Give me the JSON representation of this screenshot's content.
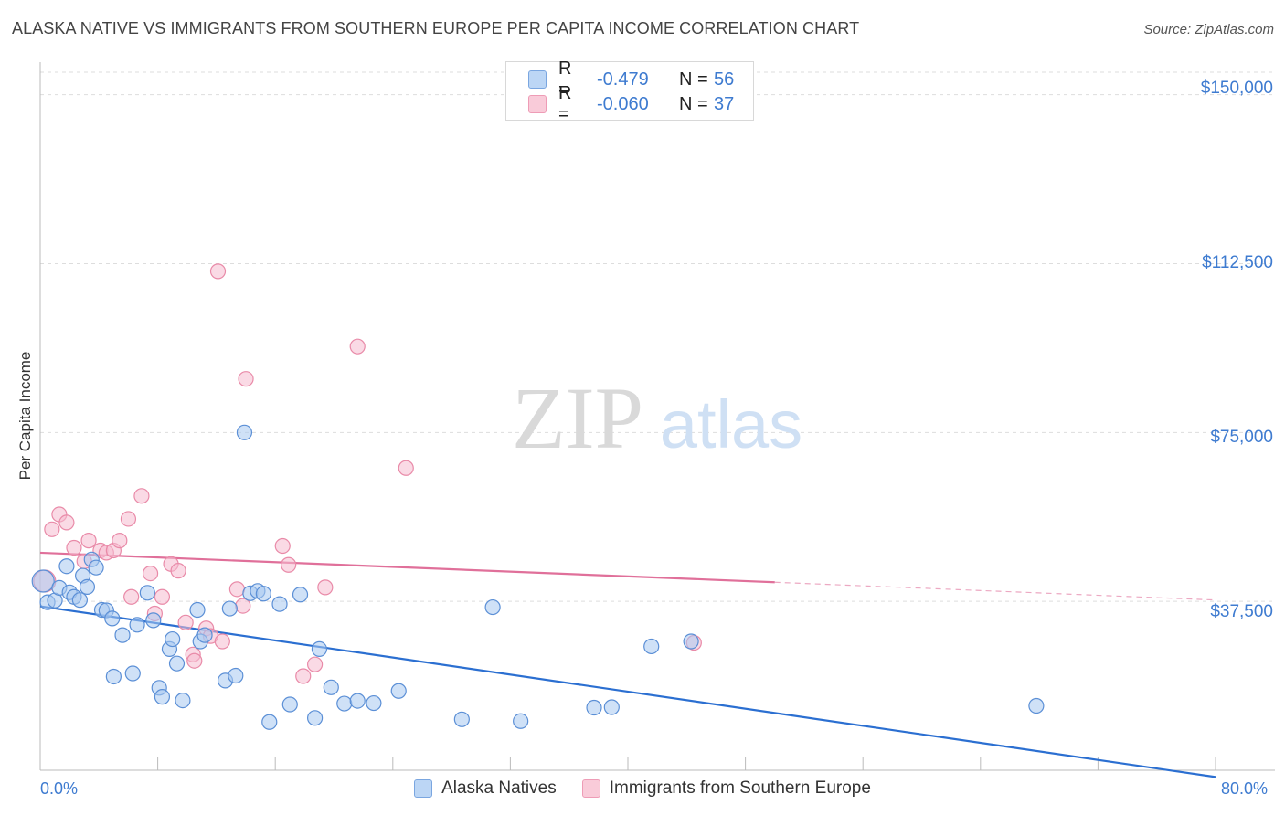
{
  "header": {
    "title": "ALASKA NATIVE VS IMMIGRANTS FROM SOUTHERN EUROPE PER CAPITA INCOME CORRELATION CHART",
    "source": "Source: ZipAtlas.com"
  },
  "watermark": {
    "zip": "ZIP",
    "atlas": "atlas"
  },
  "legend": {
    "rows": [
      {
        "r_label": "R =",
        "r_value": "-0.479",
        "n_label": "N =",
        "n_value": "56"
      },
      {
        "r_label": "R =",
        "r_value": "-0.060",
        "n_label": "N =",
        "n_value": "37"
      }
    ]
  },
  "bottom_legend": {
    "items": [
      {
        "label": "Alaska Natives"
      },
      {
        "label": "Immigrants from Southern Europe"
      }
    ]
  },
  "axis": {
    "ylabel": "Per Capita Income",
    "y_ticks": [
      "$150,000",
      "$112,500",
      "$75,000",
      "$37,500"
    ],
    "x_ticks": [
      "0.0%",
      "80.0%"
    ]
  },
  "chart_data": {
    "type": "scatter",
    "title": "ALASKA NATIVE VS IMMIGRANTS FROM SOUTHERN EUROPE PER CAPITA INCOME CORRELATION CHART",
    "xlabel": "",
    "ylabel": "Per Capita Income",
    "xlim": [
      0,
      80
    ],
    "ylim": [
      0,
      155000
    ],
    "y_tick_values": [
      150000,
      112500,
      75000,
      37500
    ],
    "colors": {
      "blue_fill": "#a8c8f0",
      "blue_stroke": "#5b8fd6",
      "blue_line": "#2b6fd1",
      "pink_fill": "#f6bccf",
      "pink_stroke": "#e98aa8",
      "pink_line": "#e0709a",
      "grid": "#dddddd",
      "axis_text": "#3e7bd0"
    },
    "series": [
      {
        "name": "Alaska Natives",
        "r": -0.479,
        "n": 56,
        "trend": {
          "x": [
            0,
            80
          ],
          "y": [
            36400,
            -1500
          ],
          "dashed_from_x": null
        },
        "points": [
          [
            0.2,
            42000
          ],
          [
            0.5,
            37300
          ],
          [
            1.0,
            37700
          ],
          [
            1.3,
            40500
          ],
          [
            1.8,
            45300
          ],
          [
            2.0,
            39500
          ],
          [
            2.3,
            38500
          ],
          [
            2.7,
            37800
          ],
          [
            2.9,
            43200
          ],
          [
            3.2,
            40700
          ],
          [
            3.5,
            46800
          ],
          [
            3.8,
            45000
          ],
          [
            4.2,
            35600
          ],
          [
            4.5,
            35500
          ],
          [
            4.9,
            33700
          ],
          [
            5.0,
            20800
          ],
          [
            5.6,
            30000
          ],
          [
            6.3,
            21500
          ],
          [
            6.6,
            32300
          ],
          [
            7.3,
            39400
          ],
          [
            7.7,
            33300
          ],
          [
            8.1,
            18300
          ],
          [
            8.3,
            16300
          ],
          [
            8.8,
            26900
          ],
          [
            9.0,
            29100
          ],
          [
            9.3,
            23700
          ],
          [
            9.7,
            15500
          ],
          [
            10.7,
            35600
          ],
          [
            10.9,
            28600
          ],
          [
            11.2,
            30000
          ],
          [
            12.6,
            19900
          ],
          [
            12.9,
            35900
          ],
          [
            13.3,
            21000
          ],
          [
            13.9,
            75000
          ],
          [
            14.3,
            39300
          ],
          [
            14.8,
            39800
          ],
          [
            15.2,
            39200
          ],
          [
            15.6,
            10700
          ],
          [
            16.3,
            36900
          ],
          [
            17.0,
            14600
          ],
          [
            17.7,
            39000
          ],
          [
            18.7,
            11600
          ],
          [
            19.0,
            26900
          ],
          [
            19.8,
            18400
          ],
          [
            20.7,
            14800
          ],
          [
            21.6,
            15400
          ],
          [
            22.7,
            14900
          ],
          [
            24.4,
            17600
          ],
          [
            28.7,
            11300
          ],
          [
            30.8,
            36200
          ],
          [
            32.7,
            10900
          ],
          [
            37.7,
            13900
          ],
          [
            38.9,
            14000
          ],
          [
            41.6,
            27500
          ],
          [
            44.3,
            28600
          ],
          [
            67.8,
            14300
          ]
        ]
      },
      {
        "name": "Immigrants from Southern Europe",
        "r": -0.06,
        "n": 37,
        "trend": {
          "x": [
            0,
            80
          ],
          "y": [
            48300,
            37800
          ],
          "dashed_from_x": 50
        },
        "points": [
          [
            0.3,
            42000
          ],
          [
            0.8,
            53500
          ],
          [
            1.3,
            56800
          ],
          [
            1.8,
            55000
          ],
          [
            2.3,
            49400
          ],
          [
            3.0,
            46400
          ],
          [
            3.3,
            51000
          ],
          [
            4.1,
            48800
          ],
          [
            4.5,
            48300
          ],
          [
            5.0,
            48800
          ],
          [
            5.4,
            51000
          ],
          [
            6.0,
            55800
          ],
          [
            6.2,
            38500
          ],
          [
            6.9,
            60900
          ],
          [
            7.5,
            43700
          ],
          [
            7.8,
            34800
          ],
          [
            8.3,
            38500
          ],
          [
            8.9,
            45800
          ],
          [
            9.4,
            44300
          ],
          [
            9.9,
            32800
          ],
          [
            10.4,
            25700
          ],
          [
            10.5,
            24300
          ],
          [
            11.3,
            31500
          ],
          [
            11.6,
            29800
          ],
          [
            12.1,
            110800
          ],
          [
            12.4,
            28600
          ],
          [
            13.4,
            40200
          ],
          [
            13.8,
            36500
          ],
          [
            14.0,
            86900
          ],
          [
            16.5,
            49800
          ],
          [
            16.9,
            45600
          ],
          [
            17.9,
            20900
          ],
          [
            18.7,
            23500
          ],
          [
            19.4,
            40600
          ],
          [
            21.6,
            94100
          ],
          [
            24.9,
            67100
          ],
          [
            44.5,
            28300
          ]
        ]
      }
    ]
  }
}
